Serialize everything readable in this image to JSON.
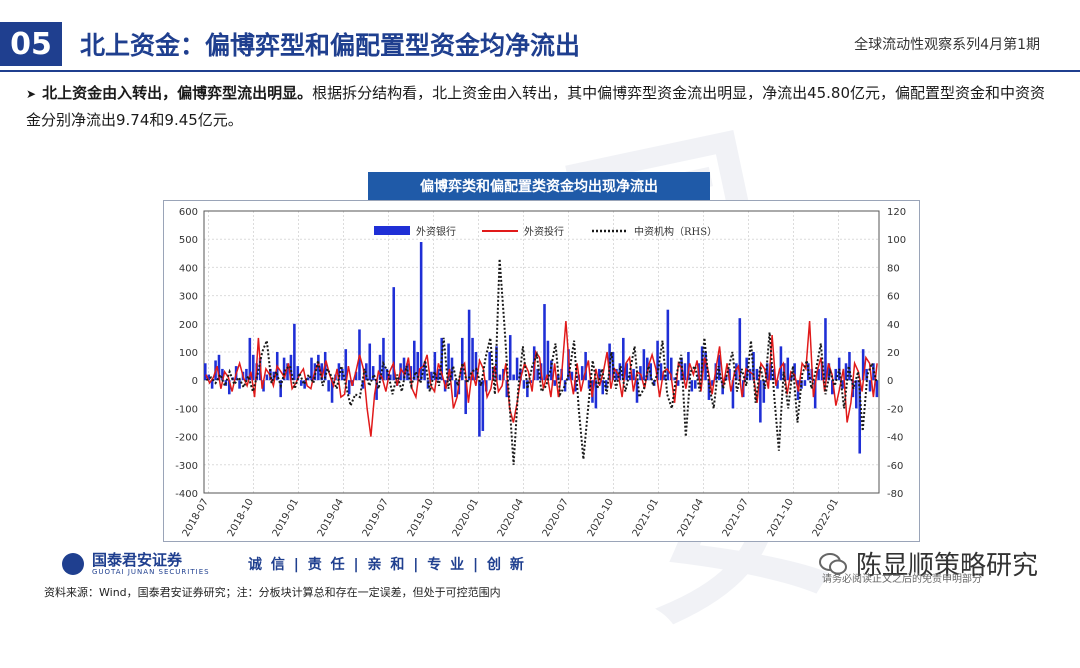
{
  "header": {
    "section_number": "05",
    "title": "北上资金：偏博弈型和偏配置型资金均净流出",
    "series": "全球流动性观察系列4月第1期"
  },
  "bullet": {
    "bold": "北上资金由入转出，偏博弈型流出明显。",
    "text": "根据拆分结构看，北上资金由入转出，其中偏博弈型资金流出明显，净流出45.80亿元，偏配置型资金和中资资金分别净流出9.74和9.45亿元。"
  },
  "chart_title": "偏博弈类和偏配置类资金均出现净流出",
  "chart_data": {
    "type": "bar+line",
    "x_ticks": [
      "2018-07",
      "2018-10",
      "2019-01",
      "2019-04",
      "2019-07",
      "2019-10",
      "2020-01",
      "2020-04",
      "2020-07",
      "2020-10",
      "2021-01",
      "2021-04",
      "2021-07",
      "2021-10",
      "2022-01"
    ],
    "y_left": {
      "range": [
        -400,
        600
      ],
      "ticks": [
        -400,
        -300,
        -200,
        -100,
        0,
        100,
        200,
        300,
        400,
        500,
        600
      ]
    },
    "y_right": {
      "range": [
        -80,
        120
      ],
      "ticks": [
        -80,
        -60,
        -40,
        -20,
        0,
        20,
        40,
        60,
        80,
        100,
        120
      ]
    },
    "legend": [
      "外资银行",
      "外资投行",
      "中资机构（RHS）"
    ],
    "series": [
      {
        "name": "外资银行",
        "kind": "bar",
        "axis": "left",
        "color": "#1f2fd6",
        "values": [
          60,
          20,
          -30,
          70,
          90,
          40,
          -20,
          -50,
          10,
          50,
          -30,
          30,
          40,
          150,
          90,
          60,
          80,
          -40,
          20,
          40,
          30,
          100,
          -60,
          80,
          60,
          90,
          200,
          50,
          -20,
          -30,
          10,
          80,
          60,
          90,
          60,
          100,
          -40,
          -80,
          20,
          60,
          40,
          110,
          -50,
          -20,
          30,
          180,
          -30,
          60,
          130,
          50,
          -70,
          90,
          150,
          40,
          20,
          330,
          -20,
          60,
          80,
          60,
          50,
          140,
          100,
          490,
          60,
          -30,
          30,
          100,
          40,
          150,
          -40,
          130,
          80,
          -60,
          -50,
          150,
          -120,
          250,
          150,
          100,
          -200,
          -180,
          -40,
          100,
          40,
          120,
          20,
          40,
          -60,
          160,
          20,
          80,
          40,
          -30,
          -60,
          -10,
          120,
          40,
          60,
          270,
          140,
          70,
          -20,
          20,
          40,
          -40,
          110,
          30,
          -40,
          20,
          50,
          100,
          -30,
          -80,
          -100,
          40,
          -50,
          -30,
          130,
          100,
          40,
          60,
          150,
          60,
          20,
          40,
          -80,
          50,
          110,
          80,
          60,
          -20,
          140,
          60,
          20,
          250,
          80,
          10,
          -20,
          80,
          60,
          100,
          -40,
          -30,
          60,
          120,
          100,
          -70,
          -20,
          60,
          90,
          -50,
          20,
          40,
          -100,
          60,
          220,
          -60,
          80,
          40,
          100,
          40,
          -150,
          -80,
          60,
          60,
          40,
          -30,
          120,
          60,
          80,
          20,
          60,
          -70,
          -30,
          -20,
          60,
          40,
          -100,
          40,
          60,
          220,
          60,
          -50,
          40,
          80,
          -30,
          60,
          100,
          -60,
          -100,
          -260,
          110,
          40,
          -40,
          60,
          -60
        ]
      },
      {
        "name": "外资投行",
        "kind": "line",
        "axis": "left",
        "color": "#e11a1a",
        "values": [
          20,
          -10,
          10,
          50,
          -30,
          30,
          10,
          -40,
          20,
          60,
          10,
          -20,
          30,
          -60,
          150,
          -30,
          40,
          20,
          -20,
          50,
          30,
          10,
          60,
          -30,
          -10,
          20,
          40,
          -20,
          -30,
          30,
          60,
          10,
          70,
          20,
          -20,
          40,
          -60,
          -50,
          50,
          -20,
          30,
          90,
          40,
          -100,
          -200,
          -50,
          30,
          10,
          -40,
          30,
          60,
          -20,
          40,
          20,
          80,
          -30,
          -60,
          40,
          50,
          90,
          -20,
          -40,
          60,
          20,
          -30,
          40,
          -100,
          -60,
          40,
          60,
          -80,
          30,
          -20,
          70,
          40,
          -60,
          -30,
          50,
          -40,
          -20,
          60,
          -100,
          -150,
          -80,
          10,
          60,
          30,
          -40,
          100,
          80,
          -30,
          20,
          -60,
          60,
          -60,
          40,
          210,
          30,
          -50,
          60,
          -40,
          20,
          70,
          -60,
          40,
          -20,
          30,
          100,
          -30,
          40,
          20,
          -60,
          60,
          80,
          -40,
          30,
          20,
          -30,
          50,
          90,
          40,
          -60,
          30,
          40,
          20,
          -80,
          60,
          40,
          -30,
          60,
          20,
          70,
          -40,
          80,
          30,
          -50,
          40,
          120,
          -20,
          60,
          -40,
          30,
          50,
          -60,
          40,
          30,
          20,
          -80,
          60,
          40,
          -30,
          160,
          -20,
          40,
          60,
          -50,
          30,
          20,
          -40,
          60,
          40,
          210,
          -60,
          30,
          80,
          -40,
          60,
          20,
          -90,
          -30,
          40,
          -150,
          -80,
          60,
          30,
          -40,
          80,
          60,
          -60,
          60
        ]
      },
      {
        "name": "中资机构（RHS）",
        "kind": "dotted-line",
        "axis": "right",
        "color": "#1a1a1a",
        "values": [
          0,
          2,
          -2,
          4,
          -4,
          6,
          -3,
          2,
          -5,
          3,
          -8,
          4,
          20,
          28,
          -2,
          6,
          -4,
          8,
          10,
          -6,
          5,
          -3,
          4,
          -2,
          14,
          -4,
          8,
          2,
          -6,
          10,
          -4,
          -18,
          -10,
          -12,
          8,
          -4,
          4,
          -6,
          12,
          6,
          -10,
          4,
          -8,
          10,
          -4,
          6,
          -2,
          14,
          -8,
          6,
          -4,
          30,
          -6,
          10,
          -4,
          12,
          -2,
          6,
          8,
          -4,
          16,
          30,
          -10,
          86,
          40,
          -10,
          -60,
          -6,
          24,
          -6,
          10,
          18,
          -8,
          -4,
          8,
          26,
          -10,
          -4,
          6,
          28,
          -20,
          -56,
          -20,
          14,
          -6,
          8,
          -10,
          20,
          -6,
          10,
          -8,
          6,
          24,
          -12,
          -6,
          10,
          -4,
          6,
          28,
          -10,
          -20,
          4,
          18,
          -40,
          6,
          10,
          -8,
          30,
          -4,
          -20,
          10,
          -6,
          6,
          20,
          -8,
          8,
          -4,
          28,
          -16,
          10,
          -6,
          34,
          -12,
          -50,
          6,
          -20,
          10,
          -30,
          4,
          14,
          -6,
          8,
          26,
          -10,
          6,
          -4,
          8,
          -20,
          10,
          -6,
          6,
          -36,
          4,
          12,
          -2
        ]
      }
    ]
  },
  "footer": {
    "logo_name": "国泰君安证券",
    "logo_sub": "GUOTAI JUNAN SECURITIES",
    "motto": "诚 信 | 责 任 | 亲 和 | 专 业 | 创 新",
    "brand": "陈显顺策略研究",
    "tag": "请务必阅读正文之后的免责申明部分",
    "source": "资料来源：Wind，国泰君安证券研究；注：分板块计算总和存在一定误差，但处于可控范围内"
  }
}
